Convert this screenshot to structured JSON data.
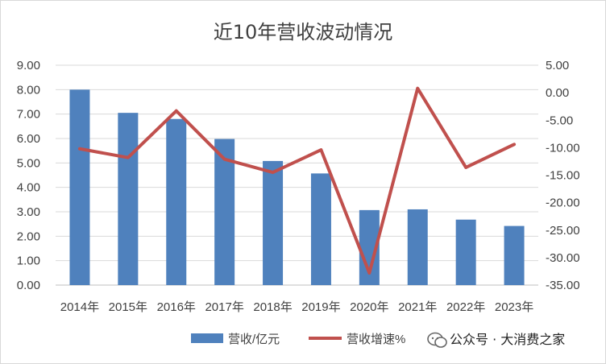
{
  "chart_data": {
    "type": "bar",
    "title": "近10年营收波动情况",
    "categories": [
      "2014年",
      "2015年",
      "2016年",
      "2017年",
      "2018年",
      "2019年",
      "2020年",
      "2021年",
      "2022年",
      "2023年"
    ],
    "series": [
      {
        "name": "营收/亿元",
        "type": "bar",
        "axis": "left",
        "color": "#4f81bd",
        "values": [
          8.0,
          7.05,
          6.8,
          5.98,
          5.08,
          4.57,
          3.07,
          3.1,
          2.68,
          2.42
        ]
      },
      {
        "name": "营收增速%",
        "type": "line",
        "axis": "right",
        "color": "#c0504d",
        "values": [
          -10.2,
          -11.8,
          -3.3,
          -12.1,
          -14.5,
          -10.4,
          -32.8,
          0.8,
          -13.6,
          -9.4
        ]
      }
    ],
    "ylim_left": [
      0,
      9
    ],
    "yticks_left": [
      "0.00",
      "1.00",
      "2.00",
      "3.00",
      "4.00",
      "5.00",
      "6.00",
      "7.00",
      "8.00",
      "9.00"
    ],
    "ylim_right": [
      -35,
      5
    ],
    "yticks_right": [
      "-35.00",
      "-30.00",
      "-25.00",
      "-20.00",
      "-15.00",
      "-10.00",
      "-5.00",
      "0.00",
      "5.00"
    ],
    "grid": true,
    "legend": "bottom"
  },
  "watermark": {
    "text": "公众号 · 大消费之家"
  }
}
